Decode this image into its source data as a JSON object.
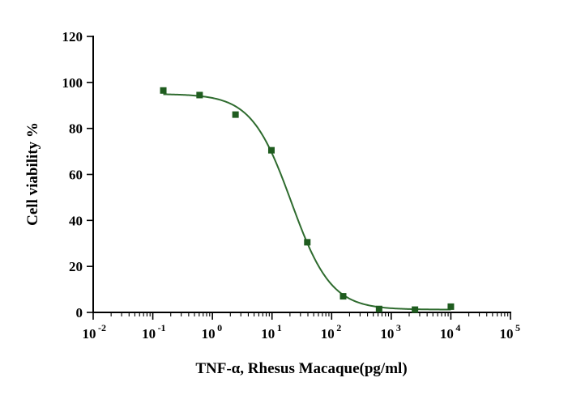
{
  "chart_data": {
    "type": "scatter",
    "title": "",
    "xlabel": "TNF-α, Rhesus Macaque(pg/ml)",
    "ylabel": "Cell viability %",
    "x_scale": "log",
    "xlim": [
      0.01,
      100000
    ],
    "ylim": [
      0,
      120
    ],
    "x_ticks": [
      {
        "base": "10",
        "exp": "-2"
      },
      {
        "base": "10",
        "exp": "-1"
      },
      {
        "base": "10",
        "exp": "0"
      },
      {
        "base": "10",
        "exp": "1"
      },
      {
        "base": "10",
        "exp": "2"
      },
      {
        "base": "10",
        "exp": "3"
      },
      {
        "base": "10",
        "exp": "4"
      },
      {
        "base": "10",
        "exp": "5"
      }
    ],
    "y_ticks": [
      "0",
      "20",
      "40",
      "60",
      "80",
      "100",
      "120"
    ],
    "grid": false,
    "marker_color": "#1f5c1f",
    "line_color": "#2e6b2e",
    "series": [
      {
        "x": [
          0.15,
          0.61,
          2.44,
          9.77,
          39.1,
          156,
          625,
          2500,
          10000
        ],
        "y": [
          96.5,
          94.5,
          86,
          70.5,
          30.5,
          7,
          1.5,
          1.2,
          2.5
        ]
      }
    ],
    "fit": {
      "type": "4PL",
      "top": 95,
      "bottom": 1.2,
      "ec50": 21,
      "hill": 1.3
    }
  }
}
